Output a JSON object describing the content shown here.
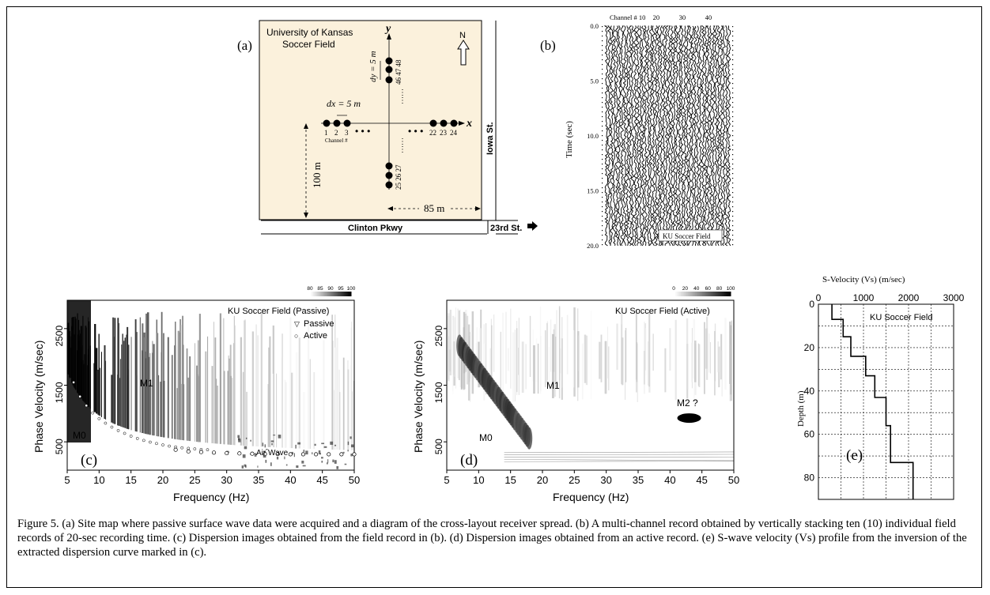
{
  "panel_a": {
    "label": "(a)",
    "title_line1": "University of Kansas",
    "title_line2": "Soccer Field",
    "north": "N",
    "axis_y": "y",
    "axis_x": "x",
    "dy_label": "dy = 5 m",
    "dx_label": "dx = 5 m",
    "ch_1": "1",
    "ch_2": "2",
    "ch_3": "3",
    "ch_22": "22",
    "ch_23": "23",
    "ch_24": "24",
    "ch_46_48": "46 47 48",
    "ch_25_27": "25 26 27",
    "channel_label": "Channel #",
    "dist_100": "100 m",
    "dist_85": "85 m",
    "street_iowa": "Iowa St.",
    "street_clinton": "Clinton Pkwy",
    "street_23rd": "23rd St."
  },
  "panel_b": {
    "label": "(b)",
    "ylabel": "Time (sec)",
    "channel_label": "Channel # 10",
    "ch_ticks": [
      "20",
      "30",
      "40"
    ],
    "y_ticks": [
      "0.0",
      "5.0",
      "10.0",
      "15.0",
      "20.0"
    ],
    "site_label": "KU Soccer Field"
  },
  "panel_c": {
    "label": "(c)",
    "title": "KU Soccer Field (Passive)",
    "scale_ticks": [
      "80",
      "85",
      "90",
      "95",
      "100"
    ],
    "scale_unit": "(%)",
    "legend_passive": "Passive",
    "legend_active": "Active",
    "mode_m1": "M1",
    "mode_m0": "M0",
    "air_wave": "Air Wave"
  },
  "panel_d": {
    "label": "(d)",
    "title": "KU Soccer Field (Active)",
    "scale_ticks": [
      "0",
      "20",
      "40",
      "60",
      "80",
      "100"
    ],
    "scale_unit": "(%)",
    "mode_m1": "M1",
    "mode_m0": "M0",
    "mode_m2": "M2 ?"
  },
  "shared_axes": {
    "xlabel": "Frequency (Hz)",
    "ylabel": "Phase Velocity (m/sec)",
    "x_ticks": [
      "5",
      "10",
      "15",
      "20",
      "25",
      "30",
      "35",
      "40",
      "45",
      "50"
    ],
    "y_ticks": [
      "500",
      "1500",
      "2500"
    ]
  },
  "panel_e": {
    "label": "(e)",
    "xlabel": "S-Velocity (Vs) (m/sec)",
    "ylabel": "Depth (m)",
    "x_ticks": [
      "0",
      "1000",
      "2000",
      "3000"
    ],
    "y_ticks": [
      "0",
      "20",
      "40",
      "60",
      "80"
    ],
    "site_label": "KU Soccer Field"
  },
  "chart_data": [
    {
      "type": "line",
      "panel": "(c)",
      "title": "KU Soccer Field (Passive)",
      "xlabel": "Frequency (Hz)",
      "ylabel": "Phase Velocity (m/sec)",
      "xlim": [
        5,
        50
      ],
      "ylim": [
        0,
        3000
      ],
      "series": [
        {
          "name": "Passive",
          "x": [
            6,
            7,
            8,
            9,
            10,
            11,
            12,
            13,
            14,
            15,
            16,
            17,
            18,
            19,
            20,
            21,
            22,
            23,
            24,
            25,
            26,
            27
          ],
          "y": [
            1550,
            1300,
            1140,
            1010,
            910,
            830,
            760,
            700,
            650,
            600,
            560,
            525,
            495,
            470,
            445,
            425,
            410,
            395,
            385,
            375,
            365,
            360
          ]
        },
        {
          "name": "Active",
          "x": [
            22,
            24,
            26,
            28,
            30,
            32,
            34,
            36,
            38,
            40,
            42,
            44,
            46,
            48,
            50
          ],
          "y": [
            360,
            330,
            320,
            310,
            300,
            295,
            290,
            285,
            285,
            280,
            280,
            280,
            280,
            280,
            280
          ]
        }
      ]
    },
    {
      "type": "line",
      "panel": "(e)",
      "xlabel": "S-Velocity (Vs) (m/sec)",
      "ylabel": "Depth (m)",
      "xlim": [
        0,
        3000
      ],
      "ylim": [
        0,
        90
      ],
      "series": [
        {
          "x": [
            300,
            300,
            550,
            550,
            720,
            720,
            1050,
            1050,
            1250,
            1250,
            1500,
            1500,
            1600,
            1600,
            2100,
            2100
          ],
          "y": [
            0,
            7,
            7,
            15,
            15,
            24,
            24,
            33,
            33,
            43,
            43,
            56,
            56,
            73,
            73,
            90
          ]
        }
      ]
    }
  ],
  "caption": "Figure 5.   (a) Site map where passive surface wave data were acquired and a diagram of the cross-layout receiver spread. (b) A multi-channel record obtained by vertically stacking ten (10) individual field records of 20-sec recording time. (c) Dispersion images obtained from the field record in (b). (d) Dispersion images obtained from an active record. (e) S-wave velocity (Vs) profile from the inversion of the extracted dispersion curve marked in (c)."
}
